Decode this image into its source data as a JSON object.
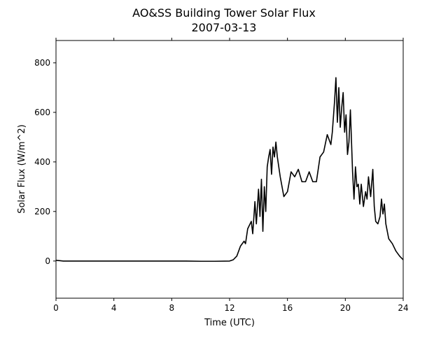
{
  "chart_data": {
    "type": "line",
    "title": "AO&SS Building Tower Solar Flux",
    "subtitle": "2007-03-13",
    "x_label": "Time (UTC)",
    "y_label": "Solar Flux (W/m^2)",
    "x": [
      0,
      0.5,
      1,
      2,
      3,
      4,
      5,
      6,
      7,
      8,
      9,
      10,
      11,
      12,
      12.25,
      12.5,
      12.75,
      13,
      13.1,
      13.25,
      13.5,
      13.6,
      13.75,
      13.85,
      14,
      14.1,
      14.2,
      14.3,
      14.4,
      14.5,
      14.6,
      14.7,
      14.8,
      14.9,
      15,
      15.1,
      15.2,
      15.3,
      15.5,
      15.75,
      16,
      16.25,
      16.5,
      16.75,
      17,
      17.25,
      17.5,
      17.75,
      18,
      18.25,
      18.5,
      18.75,
      19,
      19.1,
      19.25,
      19.35,
      19.45,
      19.55,
      19.65,
      19.75,
      19.85,
      19.95,
      20.05,
      20.15,
      20.25,
      20.35,
      20.5,
      20.6,
      20.7,
      20.8,
      20.9,
      21,
      21.1,
      21.25,
      21.4,
      21.5,
      21.6,
      21.75,
      21.9,
      22,
      22.1,
      22.25,
      22.4,
      22.5,
      22.6,
      22.7,
      22.8,
      23,
      23.25,
      23.5,
      23.75,
      24
    ],
    "series": [
      {
        "name": "Solar Flux",
        "color": "#000000",
        "values": [
          3,
          0,
          0,
          0,
          0,
          0,
          0,
          0,
          0,
          0,
          0,
          -1,
          -1,
          0,
          5,
          20,
          60,
          80,
          70,
          130,
          160,
          110,
          240,
          150,
          290,
          180,
          330,
          120,
          300,
          200,
          380,
          420,
          450,
          350,
          460,
          420,
          480,
          420,
          340,
          260,
          280,
          360,
          340,
          370,
          320,
          320,
          360,
          320,
          320,
          420,
          440,
          510,
          470,
          520,
          640,
          740,
          560,
          700,
          540,
          620,
          680,
          520,
          590,
          430,
          480,
          610,
          360,
          250,
          380,
          300,
          310,
          230,
          310,
          220,
          280,
          250,
          340,
          260,
          370,
          220,
          160,
          150,
          180,
          250,
          190,
          230,
          150,
          90,
          70,
          40,
          20,
          5
        ]
      }
    ],
    "xlim": [
      0,
      24
    ],
    "xticks": [
      0,
      4,
      8,
      12,
      16,
      20,
      24
    ],
    "ylim": [
      -150,
      890
    ],
    "yticks": [
      0,
      200,
      400,
      600,
      800
    ]
  }
}
